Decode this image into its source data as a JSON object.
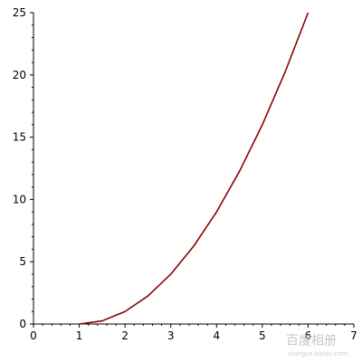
{
  "chart_data": {
    "type": "line",
    "title": "",
    "xlabel": "",
    "ylabel": "",
    "xlim": [
      0,
      7
    ],
    "ylim": [
      0,
      25
    ],
    "x_ticks": [
      0,
      1,
      2,
      3,
      4,
      5,
      6,
      7
    ],
    "y_ticks": [
      0,
      5,
      10,
      15,
      20,
      25
    ],
    "grid": false,
    "legend": "none",
    "series": [
      {
        "color": "#8b0000",
        "x": [
          1.0,
          1.5,
          2.0,
          2.5,
          3.0,
          3.5,
          4.0,
          4.5,
          5.0,
          5.5,
          6.0
        ],
        "y": [
          0.0,
          0.25,
          1.0,
          2.25,
          4.0,
          6.25,
          9.0,
          12.25,
          16.0,
          20.25,
          25.0
        ]
      }
    ]
  },
  "watermark": {
    "text": "百度相册",
    "subtext": "xiangce.baidu.com"
  }
}
